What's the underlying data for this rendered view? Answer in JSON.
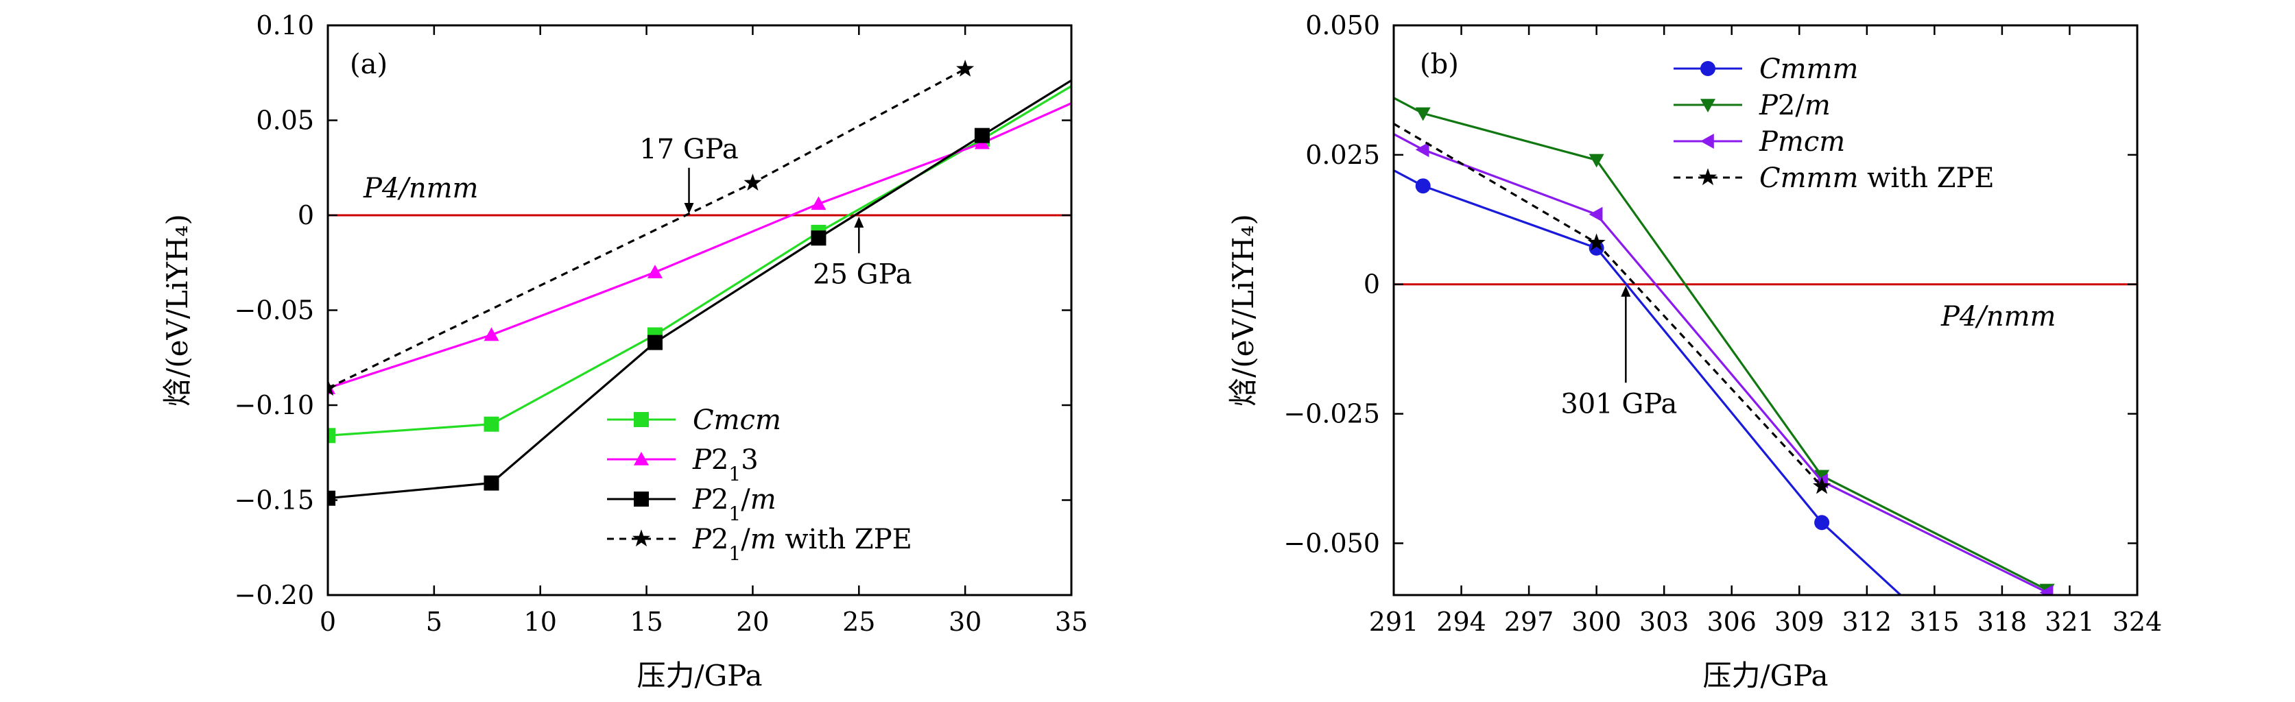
{
  "chart_data": [
    {
      "panel_label": "(a)",
      "type": "line",
      "xlabel": "压力/GPa",
      "ylabel": "焓/(eV/LiYH₄)",
      "xlim": [
        0,
        35
      ],
      "ylim": [
        -0.2,
        0.1
      ],
      "xticks": [
        0,
        5,
        10,
        15,
        20,
        25,
        30,
        35
      ],
      "yticks": [
        -0.2,
        -0.15,
        -0.1,
        -0.05,
        0,
        0.05,
        0.1
      ],
      "xtick_labels": [
        "0",
        "5",
        "10",
        "15",
        "20",
        "25",
        "30",
        "35"
      ],
      "ytick_labels": [
        "−0.20",
        "−0.15",
        "−0.10",
        "−0.05",
        "0",
        "0.05",
        "0.10"
      ],
      "reference": {
        "label": "P4/nmm",
        "y": 0,
        "color": "#cc0000"
      },
      "series": [
        {
          "name": "Cmcm",
          "color": "#22dd22",
          "marker": "square",
          "dashed": false,
          "x": [
            0,
            7.7,
            15.4,
            23.1,
            30.8,
            35
          ],
          "y": [
            -0.116,
            -0.11,
            -0.063,
            -0.009,
            0.04,
            0.068
          ],
          "marker_count": 5
        },
        {
          "name": "P2₁3",
          "color": "#ff00ff",
          "marker": "triangle-up",
          "dashed": false,
          "x": [
            0,
            7.7,
            15.4,
            23.1,
            30.8,
            35
          ],
          "y": [
            -0.091,
            -0.063,
            -0.03,
            0.006,
            0.038,
            0.059
          ],
          "marker_count": 5
        },
        {
          "name": "P2₁/m",
          "color": "#000000",
          "marker": "square",
          "dashed": false,
          "x": [
            0,
            7.7,
            15.4,
            23.1,
            30.8,
            35
          ],
          "y": [
            -0.149,
            -0.141,
            -0.067,
            -0.012,
            0.042,
            0.071
          ],
          "marker_count": 5
        },
        {
          "name": "P2₁/m with ZPE",
          "color": "#000000",
          "marker": "star",
          "dashed": true,
          "x": [
            0,
            20,
            30
          ],
          "y": [
            -0.091,
            0.017,
            0.077
          ],
          "marker_count": 3
        }
      ],
      "legend": [
        {
          "label": "Cmcm",
          "parts": [
            {
              "t": "Cmcm",
              "i": true
            }
          ]
        },
        {
          "label": "P2₁3",
          "parts": [
            {
              "t": "P",
              "i": true
            },
            {
              "t": "2"
            },
            {
              "t": "1",
              "sub": true
            },
            {
              "t": "3"
            }
          ]
        },
        {
          "label": "P2₁/m",
          "parts": [
            {
              "t": "P",
              "i": true
            },
            {
              "t": "2"
            },
            {
              "t": "1",
              "sub": true
            },
            {
              "t": "/"
            },
            {
              "t": "m",
              "i": true
            }
          ]
        },
        {
          "label": "P2₁/m with ZPE",
          "parts": [
            {
              "t": "P",
              "i": true
            },
            {
              "t": "2"
            },
            {
              "t": "1",
              "sub": true
            },
            {
              "t": "/"
            },
            {
              "t": "m",
              "i": true
            },
            {
              "t": " with ZPE"
            }
          ]
        }
      ],
      "annotations": [
        {
          "text": "17 GPa",
          "at": [
            17,
            0
          ],
          "from": [
            17,
            0.025
          ]
        },
        {
          "text": "25 GPa",
          "at": [
            25,
            0
          ],
          "from": [
            25,
            -0.02
          ]
        }
      ]
    },
    {
      "panel_label": "(b)",
      "type": "line",
      "xlabel": "压力/GPa",
      "ylabel": "焓/(eV/LiYH₄)",
      "xlim": [
        291,
        324
      ],
      "ylim": [
        -0.06,
        0.05
      ],
      "xticks": [
        291,
        294,
        297,
        300,
        303,
        306,
        309,
        312,
        315,
        318,
        321,
        324
      ],
      "yticks": [
        -0.05,
        -0.025,
        0,
        0.025,
        0.05
      ],
      "xtick_labels": [
        "291",
        "294",
        "297",
        "300",
        "303",
        "306",
        "309",
        "312",
        "315",
        "318",
        "321",
        "324"
      ],
      "ytick_labels": [
        "−0.050",
        "−0.025",
        "0",
        "0.025",
        "0.050"
      ],
      "reference": {
        "label": "P4/nmm",
        "y": 0,
        "color": "#cc0000"
      },
      "series": [
        {
          "name": "Cmmm",
          "color": "#1a1adb",
          "marker": "circle",
          "dashed": false,
          "x": [
            291,
            292.3,
            300,
            310,
            313.5
          ],
          "y": [
            0.022,
            0.019,
            0.007,
            -0.046,
            -0.06
          ],
          "marker_count": 3,
          "marker_start": 1
        },
        {
          "name": "P2/m",
          "color": "#117711",
          "marker": "triangle-down",
          "dashed": false,
          "x": [
            291,
            292.3,
            300,
            310,
            320
          ],
          "y": [
            0.036,
            0.033,
            0.024,
            -0.037,
            -0.059
          ],
          "marker_count": 4,
          "marker_start": 1
        },
        {
          "name": "Pmcm",
          "color": "#8a1aee",
          "marker": "triangle-left",
          "dashed": false,
          "x": [
            291,
            292.3,
            300,
            310,
            320
          ],
          "y": [
            0.029,
            0.026,
            0.0135,
            -0.038,
            -0.0595
          ],
          "marker_count": 4,
          "marker_start": 1
        },
        {
          "name": "Cmmm with ZPE",
          "color": "#000000",
          "marker": "star",
          "dashed": true,
          "x": [
            291,
            300,
            310
          ],
          "y": [
            0.031,
            0.008,
            -0.039
          ],
          "marker_count": 2,
          "marker_start": 1
        }
      ],
      "legend": [
        {
          "label": "Cmmm",
          "parts": [
            {
              "t": "Cmmm",
              "i": true
            }
          ]
        },
        {
          "label": "P2/m",
          "parts": [
            {
              "t": "P",
              "i": true
            },
            {
              "t": "2/"
            },
            {
              "t": "m",
              "i": true
            }
          ]
        },
        {
          "label": "Pmcm",
          "parts": [
            {
              "t": "Pmcm",
              "i": true
            }
          ]
        },
        {
          "label": "Cmmm with ZPE",
          "parts": [
            {
              "t": "Cmmm",
              "i": true
            },
            {
              "t": " with ZPE"
            }
          ]
        }
      ],
      "annotations": [
        {
          "text": "301 GPa",
          "at": [
            301.3,
            0
          ],
          "from": [
            301.3,
            -0.019
          ]
        }
      ]
    }
  ]
}
